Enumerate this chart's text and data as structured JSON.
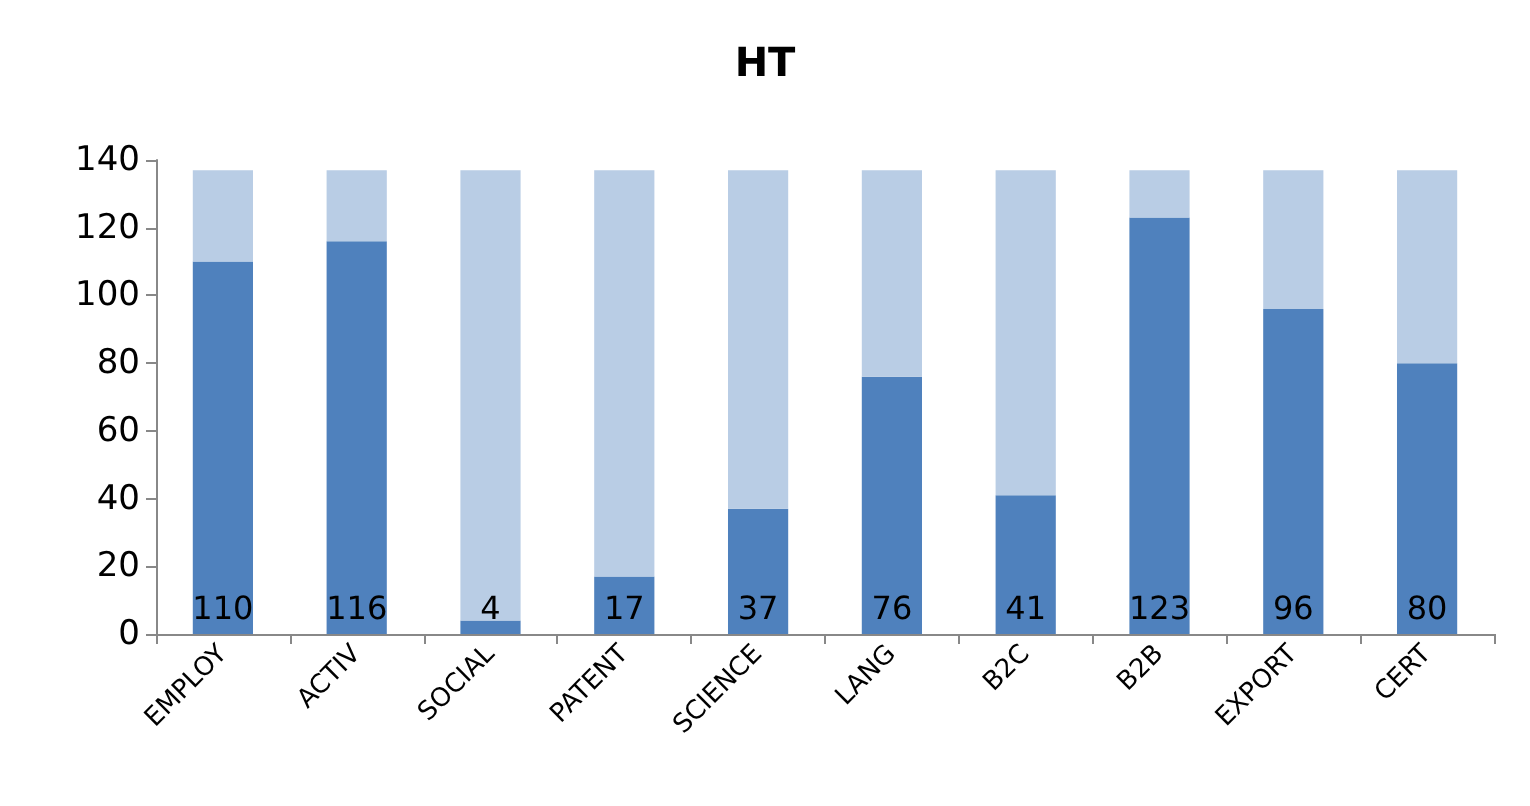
{
  "chart_data": {
    "type": "bar",
    "title": "HT",
    "stacked": true,
    "categories": [
      "EMPLOY",
      "ACTIV",
      "SOCIAL",
      "PATENT",
      "SCIENCE",
      "LANG",
      "B2C",
      "B2B",
      "EXPORT",
      "CERT"
    ],
    "series": [
      {
        "color": "#4f81bd",
        "values": [
          110,
          116,
          4,
          17,
          37,
          76,
          41,
          123,
          96,
          80
        ],
        "value_labels": [
          "110",
          "116",
          "4",
          "17",
          "37",
          "76",
          "41",
          "123",
          "96",
          "80"
        ]
      },
      {
        "color": "#b9cde5",
        "values": [
          27,
          21,
          133,
          120,
          100,
          61,
          96,
          14,
          41,
          57
        ]
      }
    ],
    "ylim": [
      0,
      140
    ],
    "yticks": [
      0,
      20,
      40,
      60,
      80,
      100,
      120,
      140
    ],
    "grid": false
  }
}
